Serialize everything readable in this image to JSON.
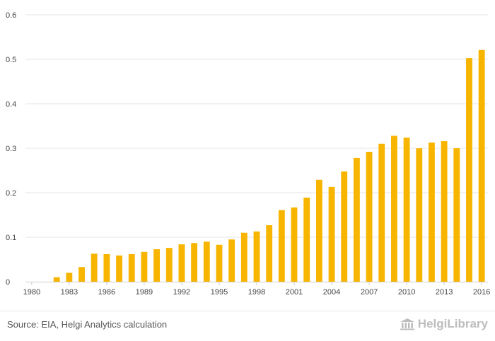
{
  "chart_data": {
    "type": "bar",
    "title": "",
    "xlabel": "",
    "ylabel": "",
    "ylim": [
      0,
      0.6
    ],
    "yticks": [
      0,
      0.1,
      0.2,
      0.3,
      0.4,
      0.5,
      0.6
    ],
    "ytick_labels": [
      "0",
      "0.1",
      "0.2",
      "0.3",
      "0.4",
      "0.5",
      "0.6"
    ],
    "xtick_labels": [
      "1980",
      "1983",
      "1986",
      "1989",
      "1992",
      "1995",
      "1998",
      "2001",
      "2004",
      "2007",
      "2010",
      "2013",
      "2016"
    ],
    "categories": [
      "1980",
      "1981",
      "1982",
      "1983",
      "1984",
      "1985",
      "1986",
      "1987",
      "1988",
      "1989",
      "1990",
      "1991",
      "1992",
      "1993",
      "1994",
      "1995",
      "1996",
      "1997",
      "1998",
      "1999",
      "2000",
      "2001",
      "2002",
      "2003",
      "2004",
      "2005",
      "2006",
      "2007",
      "2008",
      "2009",
      "2010",
      "2011",
      "2012",
      "2013",
      "2014",
      "2015",
      "2016"
    ],
    "values": [
      0,
      0,
      0.01,
      0.02,
      0.033,
      0.063,
      0.062,
      0.059,
      0.062,
      0.067,
      0.073,
      0.076,
      0.084,
      0.087,
      0.09,
      0.083,
      0.095,
      0.11,
      0.113,
      0.127,
      0.161,
      0.167,
      0.189,
      0.229,
      0.213,
      0.248,
      0.278,
      0.292,
      0.31,
      0.328,
      0.324,
      0.3,
      0.313,
      0.316,
      0.3,
      0.503,
      0.521
    ],
    "bar_color": "#f7b500",
    "grid": true,
    "legend": "none"
  },
  "footer": {
    "source": "Source: EIA, Helgi Analytics calculation",
    "brand": "HelgiLibrary",
    "brand_icon": "library-building-icon"
  }
}
